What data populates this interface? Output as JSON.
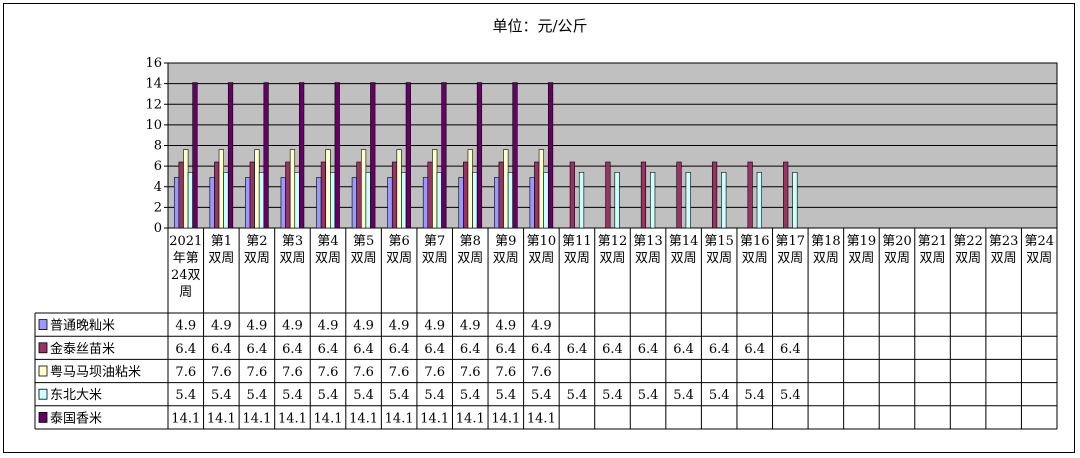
{
  "chart_data": {
    "type": "bar",
    "title": "单位：元/公斤",
    "ylim": [
      0,
      16
    ],
    "yticks": [
      0,
      2,
      4,
      6,
      8,
      10,
      12,
      14,
      16
    ],
    "grid": true,
    "legend_placement": "data-table-left",
    "plot_background": "#c0c0c0",
    "categories": [
      [
        "2021",
        "年第",
        "24双",
        "周"
      ],
      [
        "第1",
        "双周"
      ],
      [
        "第2",
        "双周"
      ],
      [
        "第3",
        "双周"
      ],
      [
        "第4",
        "双周"
      ],
      [
        "第5",
        "双周"
      ],
      [
        "第6",
        "双周"
      ],
      [
        "第7",
        "双周"
      ],
      [
        "第8",
        "双周"
      ],
      [
        "第9",
        "双周"
      ],
      [
        "第10",
        "双周"
      ],
      [
        "第11",
        "双周"
      ],
      [
        "第12",
        "双周"
      ],
      [
        "第13",
        "双周"
      ],
      [
        "第14",
        "双周"
      ],
      [
        "第15",
        "双周"
      ],
      [
        "第16",
        "双周"
      ],
      [
        "第17",
        "双周"
      ],
      [
        "第18",
        "双周"
      ],
      [
        "第19",
        "双周"
      ],
      [
        "第20",
        "双周"
      ],
      [
        "第21",
        "双周"
      ],
      [
        "第22",
        "双周"
      ],
      [
        "第23",
        "双周"
      ],
      [
        "第24",
        "双周"
      ]
    ],
    "series": [
      {
        "name": "普通晚籼米",
        "color": "#9999ff",
        "values": [
          4.9,
          4.9,
          4.9,
          4.9,
          4.9,
          4.9,
          4.9,
          4.9,
          4.9,
          4.9,
          4.9,
          null,
          null,
          null,
          null,
          null,
          null,
          null,
          null,
          null,
          null,
          null,
          null,
          null,
          null
        ]
      },
      {
        "name": "金泰丝苗米",
        "color": "#993366",
        "values": [
          6.4,
          6.4,
          6.4,
          6.4,
          6.4,
          6.4,
          6.4,
          6.4,
          6.4,
          6.4,
          6.4,
          6.4,
          6.4,
          6.4,
          6.4,
          6.4,
          6.4,
          6.4,
          null,
          null,
          null,
          null,
          null,
          null,
          null
        ]
      },
      {
        "name": "粤马马坝油粘米",
        "color": "#ffffcc",
        "values": [
          7.6,
          7.6,
          7.6,
          7.6,
          7.6,
          7.6,
          7.6,
          7.6,
          7.6,
          7.6,
          7.6,
          null,
          null,
          null,
          null,
          null,
          null,
          null,
          null,
          null,
          null,
          null,
          null,
          null,
          null
        ]
      },
      {
        "name": "东北大米",
        "color": "#ccffff",
        "values": [
          5.4,
          5.4,
          5.4,
          5.4,
          5.4,
          5.4,
          5.4,
          5.4,
          5.4,
          5.4,
          5.4,
          5.4,
          5.4,
          5.4,
          5.4,
          5.4,
          5.4,
          5.4,
          null,
          null,
          null,
          null,
          null,
          null,
          null
        ]
      },
      {
        "name": "泰国香米",
        "color": "#660066",
        "values": [
          14.1,
          14.1,
          14.1,
          14.1,
          14.1,
          14.1,
          14.1,
          14.1,
          14.1,
          14.1,
          14.1,
          null,
          null,
          null,
          null,
          null,
          null,
          null,
          null,
          null,
          null,
          null,
          null,
          null,
          null
        ]
      }
    ]
  }
}
